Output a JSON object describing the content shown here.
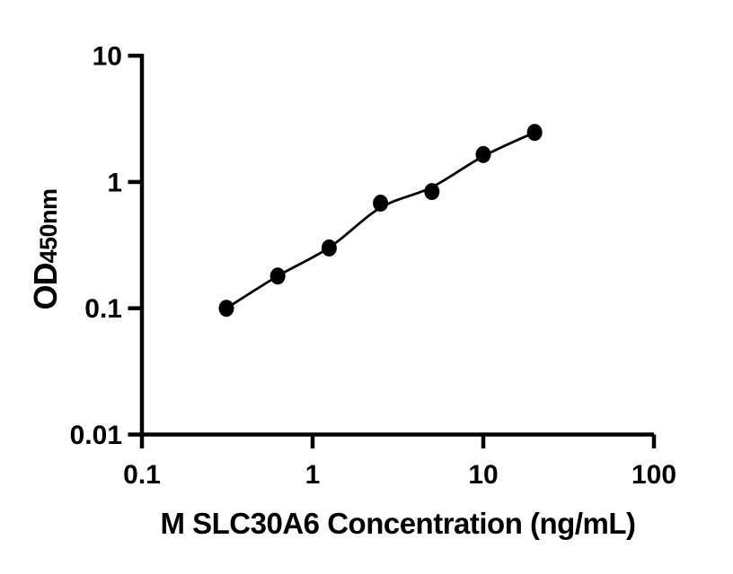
{
  "figure": {
    "background": "#ffffff",
    "ink_color": "#000000"
  },
  "chart_data": {
    "type": "scatter",
    "title": "",
    "xlabel": "M SLC30A6 Concentration (ng/mL)",
    "ylabel_main": "OD",
    "ylabel_sub": "450nm",
    "x_scale": "log",
    "y_scale": "log",
    "xlim": [
      0.1,
      100
    ],
    "ylim": [
      0.01,
      10
    ],
    "x_ticks": [
      0.1,
      1,
      10,
      100
    ],
    "x_tick_labels": [
      "0.1",
      "1",
      "10",
      "100"
    ],
    "y_ticks": [
      0.01,
      0.1,
      1,
      10
    ],
    "y_tick_labels": [
      "0.01",
      "0.1",
      "1",
      "10"
    ],
    "grid": false,
    "legend": "none",
    "series": [
      {
        "name": "standard-curve-points",
        "marker": "circle",
        "color": "#000000",
        "x": [
          0.3125,
          0.625,
          1.25,
          2.5,
          5,
          10,
          20
        ],
        "y": [
          0.1,
          0.18,
          0.3,
          0.68,
          0.84,
          1.65,
          2.47
        ]
      }
    ],
    "fit_line": {
      "name": "fitted-curve",
      "color": "#000000",
      "x": [
        0.3125,
        0.625,
        1.25,
        2.5,
        5,
        10,
        20
      ],
      "y": [
        0.1,
        0.18,
        0.302,
        0.625,
        0.91,
        1.6,
        2.47
      ]
    }
  }
}
